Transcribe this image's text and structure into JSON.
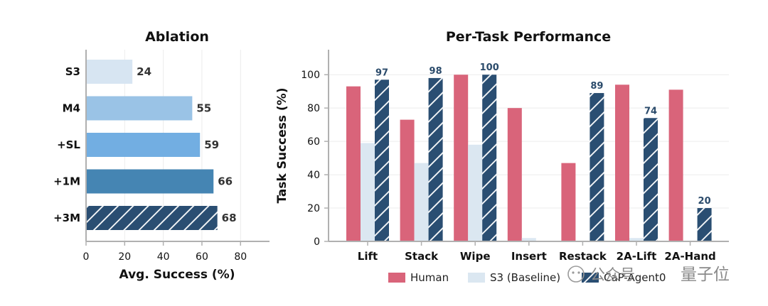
{
  "chart_data": [
    {
      "type": "bar",
      "orientation": "horizontal",
      "title": "Ablation",
      "xlabel": "Avg. Success (%)",
      "ylabel": "",
      "xlim": [
        0,
        95
      ],
      "xticks": [
        "0",
        "20",
        "40",
        "60",
        "80"
      ],
      "categories": [
        "S3",
        "M4",
        "+SL",
        "+1M",
        "+3M"
      ],
      "values": [
        24,
        55,
        59,
        66,
        68
      ],
      "value_labels": [
        "24",
        "55",
        "59",
        "66",
        "68"
      ],
      "colors": [
        "#d7e5f2",
        "#9ac3e6",
        "#72aee2",
        "#4585b3",
        "#2a4e72"
      ],
      "hatched": [
        false,
        false,
        false,
        false,
        true
      ],
      "grid": "x"
    },
    {
      "type": "bar",
      "orientation": "vertical",
      "title": "Per-Task Performance",
      "xlabel": "",
      "ylabel": "Task Success (%)",
      "ylim": [
        0,
        115
      ],
      "yticks": [
        "0",
        "20",
        "40",
        "60",
        "80",
        "100"
      ],
      "categories": [
        "Lift",
        "Stack",
        "Wipe",
        "Insert",
        "Restack",
        "2A-Lift",
        "2A-Hand"
      ],
      "series": [
        {
          "name": "Human",
          "color": "#d9647a",
          "values": [
            93,
            73,
            100,
            80,
            47,
            94,
            91
          ]
        },
        {
          "name": "S3 (Baseline)",
          "color": "#dbe7f1",
          "values": [
            59,
            47,
            58,
            2,
            0,
            2,
            0
          ]
        },
        {
          "name": "CaP-Agent0",
          "color": "#2a4e72",
          "hatched": true,
          "values": [
            97,
            98,
            100,
            0,
            89,
            74,
            20
          ]
        }
      ],
      "value_labels": [
        "97",
        "98",
        "100",
        "89",
        "74",
        "20"
      ],
      "legend": "bottom",
      "grid": "y"
    }
  ],
  "watermark": {
    "text1": "公众号",
    "text2": "量子位"
  }
}
